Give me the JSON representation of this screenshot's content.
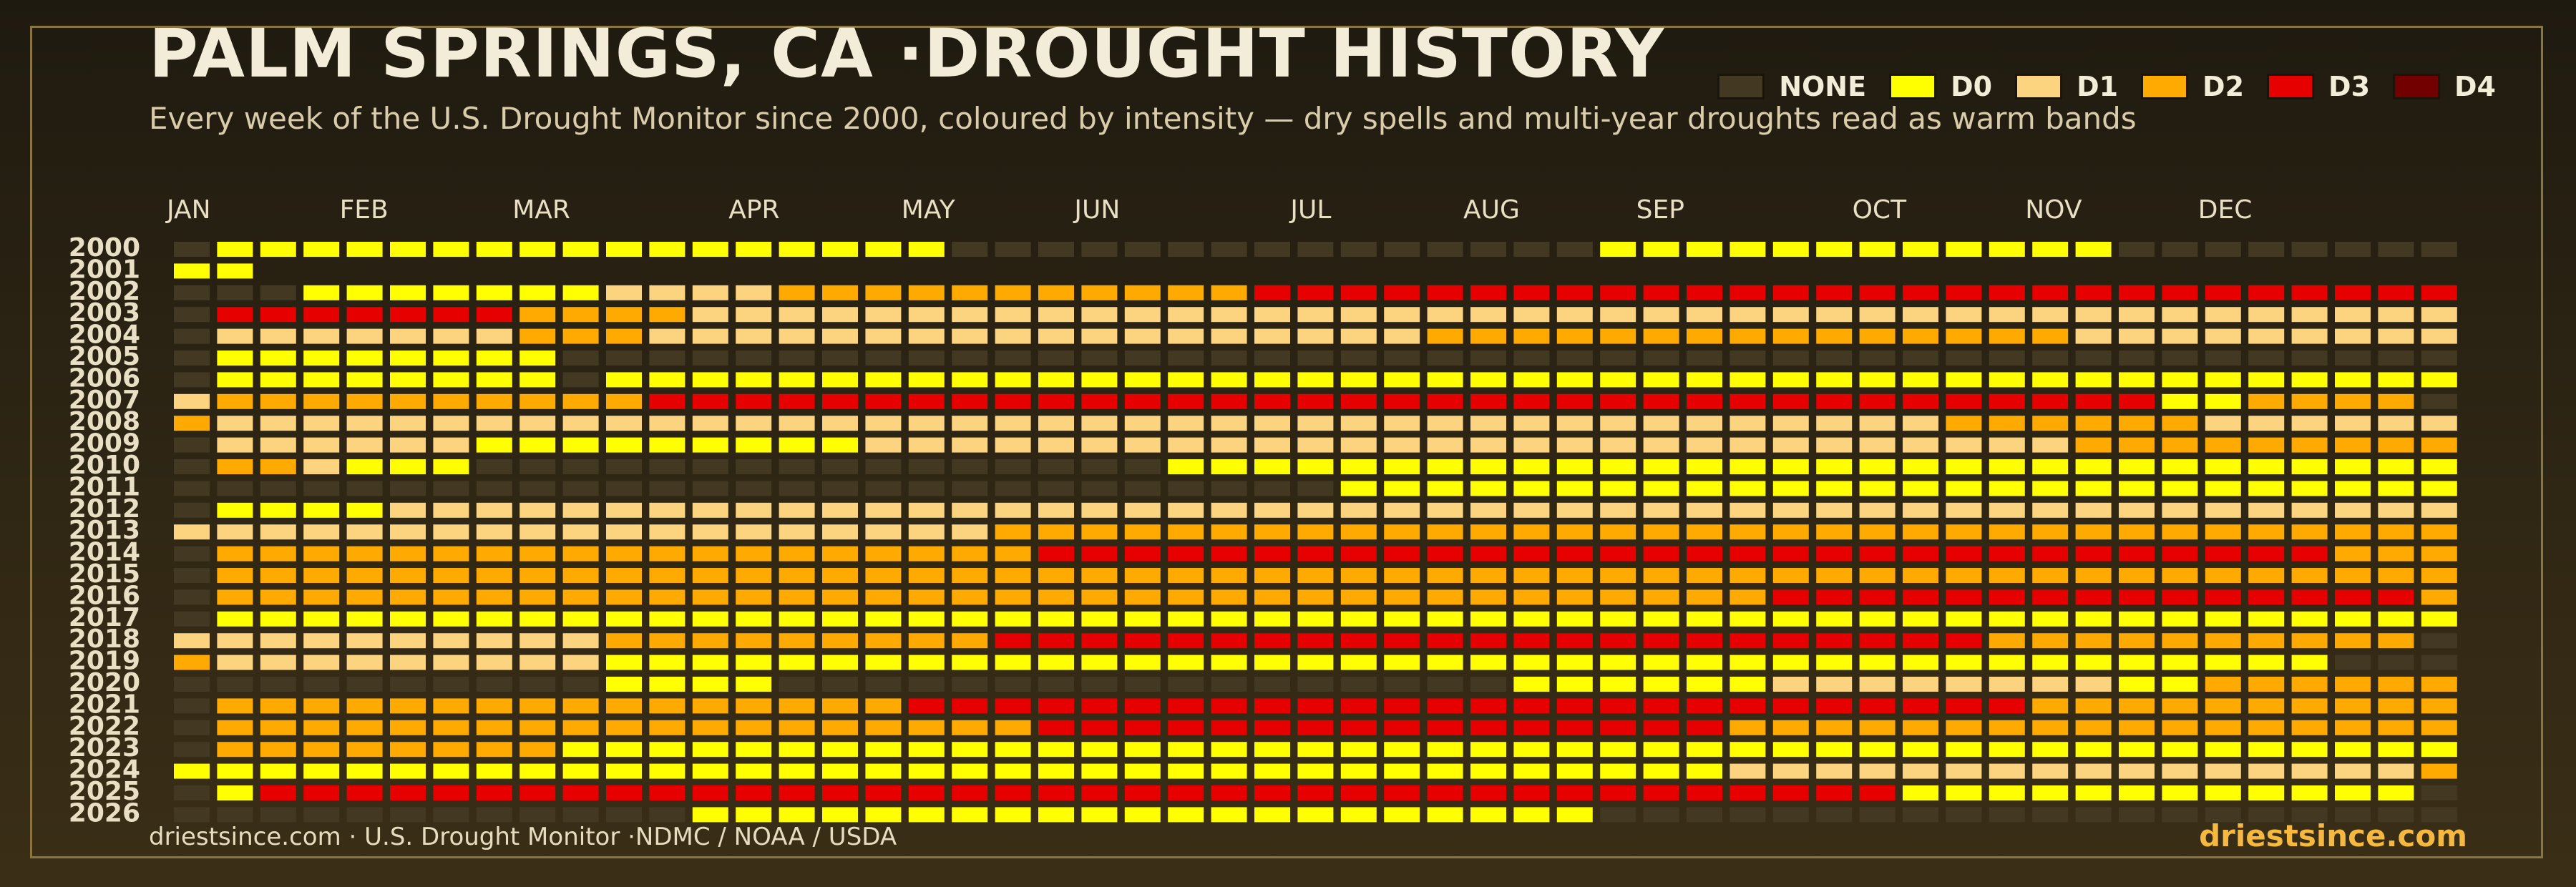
{
  "title": "PALM SPRINGS, CA ·DROUGHT HISTORY",
  "subtitle": "Every week of the U.S. Drought Monitor since 2000, coloured by intensity — dry spells and multi-year droughts read as warm bands",
  "legend": [
    {
      "label": "NONE",
      "color": "#433923"
    },
    {
      "label": "D0",
      "color": "#ffff00"
    },
    {
      "label": "D1",
      "color": "#fcd37f"
    },
    {
      "label": "D2",
      "color": "#ffaa00"
    },
    {
      "label": "D3",
      "color": "#e60000"
    },
    {
      "label": "D4",
      "color": "#730000"
    }
  ],
  "footer": {
    "source": "driestsince.com  · U.S. Drought Monitor ·NDMC / NOAA / USDA",
    "brand": "driestsince.com"
  },
  "chart_data": {
    "type": "heatmap",
    "x_unit": "week of year",
    "weeks_per_year": 53,
    "years": [
      2000,
      2001,
      2002,
      2003,
      2004,
      2005,
      2006,
      2007,
      2008,
      2009,
      2010,
      2011,
      2012,
      2013,
      2014,
      2015,
      2016,
      2017,
      2018,
      2019,
      2020,
      2021,
      2022,
      2023,
      2024,
      2025,
      2026
    ],
    "months": [
      {
        "label": "JAN",
        "week": 1
      },
      {
        "label": "FEB",
        "week": 5
      },
      {
        "label": "MAR",
        "week": 9
      },
      {
        "label": "APR",
        "week": 14
      },
      {
        "label": "MAY",
        "week": 18
      },
      {
        "label": "JUN",
        "week": 22
      },
      {
        "label": "JUL",
        "week": 27
      },
      {
        "label": "AUG",
        "week": 31
      },
      {
        "label": "SEP",
        "week": 35
      },
      {
        "label": "OCT",
        "week": 40
      },
      {
        "label": "NOV",
        "week": 44
      },
      {
        "label": "DEC",
        "week": 48
      }
    ],
    "levels": [
      "NONE",
      "D0",
      "D1",
      "D2",
      "D3",
      "D4"
    ],
    "level_encoding": "-1 = no data, 0 = NONE, 1 = D0, 2 = D1, 3 = D2, 4 = D3, 5 = D4",
    "runs_encoding": "each row is a list of [level, number_of_weeks] runs covering the weeks of that year",
    "runs": [
      [
        [
          0,
          1
        ],
        [
          1,
          17
        ],
        [
          0,
          15
        ],
        [
          1,
          12
        ],
        [
          0,
          8
        ]
      ],
      [
        [
          1,
          2
        ],
        [
          -1,
          51
        ]
      ],
      [
        [
          0,
          3
        ],
        [
          1,
          7
        ],
        [
          2,
          4
        ],
        [
          3,
          11
        ],
        [
          4,
          28
        ]
      ],
      [
        [
          0,
          1
        ],
        [
          4,
          7
        ],
        [
          3,
          4
        ],
        [
          2,
          41
        ]
      ],
      [
        [
          0,
          1
        ],
        [
          2,
          7
        ],
        [
          3,
          3
        ],
        [
          2,
          18
        ],
        [
          3,
          15
        ],
        [
          2,
          9
        ]
      ],
      [
        [
          0,
          1
        ],
        [
          1,
          8
        ],
        [
          0,
          44
        ]
      ],
      [
        [
          0,
          1
        ],
        [
          1,
          8
        ],
        [
          0,
          1
        ],
        [
          1,
          43
        ]
      ],
      [
        [
          2,
          1
        ],
        [
          3,
          10
        ],
        [
          4,
          35
        ],
        [
          1,
          2
        ],
        [
          3,
          4
        ],
        [
          0,
          1
        ]
      ],
      [
        [
          3,
          1
        ],
        [
          2,
          40
        ],
        [
          3,
          6
        ],
        [
          2,
          6
        ]
      ],
      [
        [
          0,
          1
        ],
        [
          2,
          6
        ],
        [
          1,
          9
        ],
        [
          2,
          28
        ],
        [
          3,
          9
        ]
      ],
      [
        [
          0,
          1
        ],
        [
          3,
          2
        ],
        [
          2,
          1
        ],
        [
          1,
          3
        ],
        [
          0,
          16
        ],
        [
          1,
          30
        ]
      ],
      [
        [
          0,
          27
        ],
        [
          1,
          26
        ]
      ],
      [
        [
          0,
          1
        ],
        [
          1,
          4
        ],
        [
          2,
          48
        ]
      ],
      [
        [
          2,
          1
        ],
        [
          2,
          18
        ],
        [
          3,
          34
        ]
      ],
      [
        [
          0,
          1
        ],
        [
          3,
          19
        ],
        [
          4,
          30
        ],
        [
          3,
          3
        ]
      ],
      [
        [
          0,
          1
        ],
        [
          3,
          52
        ]
      ],
      [
        [
          0,
          1
        ],
        [
          3,
          36
        ],
        [
          4,
          15
        ],
        [
          3,
          1
        ]
      ],
      [
        [
          0,
          1
        ],
        [
          1,
          52
        ]
      ],
      [
        [
          2,
          1
        ],
        [
          2,
          9
        ],
        [
          3,
          9
        ],
        [
          4,
          23
        ],
        [
          3,
          10
        ],
        [
          0,
          1
        ]
      ],
      [
        [
          3,
          1
        ],
        [
          2,
          9
        ],
        [
          1,
          40
        ],
        [
          0,
          3
        ]
      ],
      [
        [
          0,
          10
        ],
        [
          1,
          4
        ],
        [
          0,
          17
        ],
        [
          1,
          6
        ],
        [
          2,
          8
        ],
        [
          1,
          2
        ],
        [
          3,
          6
        ]
      ],
      [
        [
          0,
          1
        ],
        [
          3,
          16
        ],
        [
          4,
          26
        ],
        [
          3,
          10
        ]
      ],
      [
        [
          0,
          1
        ],
        [
          3,
          19
        ],
        [
          4,
          16
        ],
        [
          3,
          17
        ]
      ],
      [
        [
          0,
          1
        ],
        [
          3,
          8
        ],
        [
          1,
          44
        ]
      ],
      [
        [
          1,
          1
        ],
        [
          1,
          35
        ],
        [
          2,
          16
        ],
        [
          3,
          1
        ]
      ],
      [
        [
          0,
          1
        ],
        [
          1,
          1
        ],
        [
          4,
          38
        ],
        [
          1,
          12
        ],
        [
          0,
          1
        ]
      ],
      [
        [
          0,
          12
        ],
        [
          1,
          21
        ],
        [
          0,
          20
        ]
      ]
    ]
  }
}
